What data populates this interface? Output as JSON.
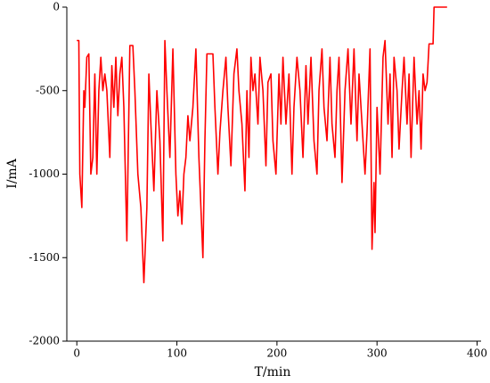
{
  "chart_data": {
    "type": "line",
    "x_label": "T/min",
    "y_label": "I/mA",
    "xlim": [
      -10,
      404
    ],
    "xticks": [
      0,
      100,
      200,
      300,
      400
    ],
    "ylim": [
      -2000,
      0
    ],
    "yticks": [
      -2000,
      -1500,
      -1000,
      -500,
      0
    ],
    "series": [
      {
        "name": "I",
        "color": "#ff0000",
        "x": [
          0,
          2,
          3,
          5,
          7,
          8,
          10,
          12,
          14,
          16,
          18,
          20,
          22,
          24,
          26,
          28,
          30,
          33,
          35,
          37,
          39,
          41,
          43,
          45,
          47,
          50,
          53,
          56,
          58,
          61,
          64,
          67,
          70,
          72,
          74,
          77,
          80,
          83,
          86,
          88,
          90,
          93,
          96,
          99,
          101,
          103,
          105,
          107,
          109,
          111,
          113,
          116,
          119,
          122,
          126,
          128,
          130,
          136,
          138,
          141,
          143,
          146,
          149,
          151,
          154,
          157,
          160,
          162,
          165,
          168,
          170,
          172,
          174,
          176,
          178,
          181,
          183,
          186,
          189,
          191,
          194,
          196,
          199,
          202,
          204,
          206,
          209,
          212,
          215,
          217,
          220,
          223,
          226,
          229,
          231,
          234,
          237,
          240,
          242,
          245,
          247,
          250,
          253,
          255,
          258,
          260,
          262,
          265,
          268,
          271,
          274,
          277,
          280,
          282,
          285,
          288,
          290,
          293,
          295,
          297,
          298,
          300,
          303,
          306,
          308,
          311,
          313,
          315,
          317,
          320,
          322,
          325,
          327,
          330,
          332,
          334,
          337,
          340,
          342,
          344,
          346,
          348,
          350,
          352,
          356,
          357,
          370
        ],
        "values": [
          -200,
          -200,
          -1000,
          -1200,
          -500,
          -600,
          -300,
          -280,
          -1000,
          -900,
          -400,
          -1000,
          -500,
          -300,
          -500,
          -400,
          -500,
          -900,
          -350,
          -600,
          -300,
          -650,
          -400,
          -300,
          -600,
          -1400,
          -230,
          -230,
          -500,
          -1000,
          -1200,
          -1650,
          -1200,
          -400,
          -700,
          -1100,
          -500,
          -800,
          -1400,
          -200,
          -500,
          -900,
          -250,
          -1000,
          -1250,
          -1100,
          -1300,
          -1000,
          -900,
          -650,
          -800,
          -600,
          -250,
          -900,
          -1500,
          -800,
          -280,
          -280,
          -600,
          -1000,
          -750,
          -500,
          -300,
          -600,
          -950,
          -400,
          -250,
          -500,
          -700,
          -1100,
          -500,
          -900,
          -300,
          -500,
          -400,
          -700,
          -300,
          -500,
          -950,
          -450,
          -400,
          -800,
          -1000,
          -400,
          -700,
          -300,
          -700,
          -400,
          -1000,
          -600,
          -300,
          -500,
          -900,
          -350,
          -700,
          -300,
          -800,
          -1000,
          -500,
          -250,
          -600,
          -800,
          -300,
          -700,
          -900,
          -500,
          -300,
          -1050,
          -500,
          -250,
          -700,
          -250,
          -800,
          -400,
          -700,
          -1000,
          -750,
          -250,
          -1450,
          -1050,
          -1350,
          -600,
          -1000,
          -300,
          -200,
          -700,
          -400,
          -900,
          -300,
          -500,
          -850,
          -500,
          -300,
          -700,
          -400,
          -900,
          -300,
          -700,
          -500,
          -850,
          -400,
          -500,
          -450,
          -220,
          -220,
          0,
          0
        ]
      }
    ]
  }
}
